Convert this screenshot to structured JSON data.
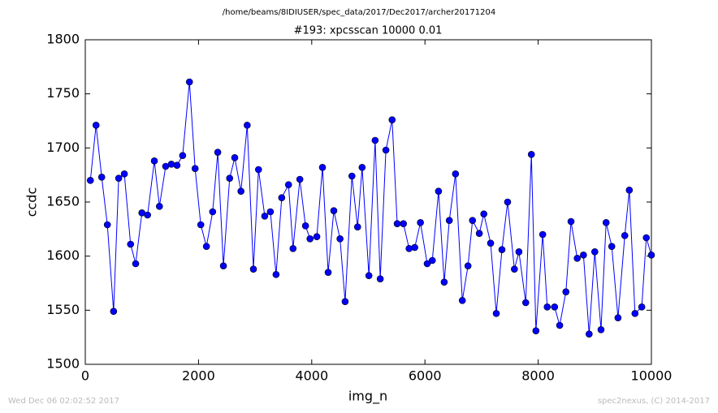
{
  "chart_data": {
    "type": "line",
    "suptitle": "/home/beams/8IDIUSER/spec_data/2017/Dec2017/archer20171204",
    "title": "#193: xpcsscan 10000 0.01",
    "x_label": "img_n",
    "y_label": "ccdc",
    "footer_left": "Wed Dec 06 02:02:52 2017",
    "footer_right": "spec2nexus, (C) 2014-2017",
    "xlim": [
      0,
      10000
    ],
    "xticks": [
      0,
      2000,
      4000,
      6000,
      8000,
      10000
    ],
    "ylim": [
      1500,
      1800
    ],
    "yticks": [
      1500,
      1550,
      1600,
      1650,
      1700,
      1750,
      1800
    ],
    "grid": false,
    "x": [
      90,
      190,
      290,
      390,
      500,
      590,
      690,
      800,
      890,
      1000,
      1100,
      1220,
      1310,
      1420,
      1520,
      1620,
      1720,
      1840,
      1940,
      2040,
      2140,
      2250,
      2340,
      2440,
      2550,
      2640,
      2750,
      2860,
      2970,
      3060,
      3170,
      3270,
      3370,
      3470,
      3590,
      3670,
      3790,
      3890,
      3970,
      4090,
      4190,
      4290,
      4390,
      4500,
      4590,
      4710,
      4810,
      4890,
      5010,
      5120,
      5210,
      5310,
      5420,
      5510,
      5620,
      5720,
      5820,
      5920,
      6040,
      6130,
      6240,
      6340,
      6430,
      6540,
      6660,
      6760,
      6840,
      6960,
      7040,
      7160,
      7260,
      7360,
      7460,
      7580,
      7660,
      7780,
      7880,
      7960,
      8080,
      8160,
      8290,
      8380,
      8490,
      8580,
      8690,
      8800,
      8900,
      9000,
      9110,
      9200,
      9300,
      9410,
      9530,
      9610,
      9710,
      9830,
      9910,
      10000
    ],
    "series": [
      {
        "name": "ccdc",
        "color": "#0000ff",
        "values": [
          1670,
          1721,
          1673,
          1629,
          1549,
          1672,
          1676,
          1611,
          1593,
          1640,
          1638,
          1688,
          1646,
          1683,
          1685,
          1684,
          1693,
          1761,
          1681,
          1629,
          1609,
          1641,
          1696,
          1591,
          1672,
          1691,
          1660,
          1721,
          1588,
          1680,
          1637,
          1641,
          1583,
          1654,
          1666,
          1607,
          1671,
          1628,
          1616,
          1618,
          1682,
          1585,
          1642,
          1616,
          1558,
          1674,
          1627,
          1682,
          1582,
          1707,
          1579,
          1698,
          1726,
          1630,
          1630,
          1607,
          1608,
          1631,
          1593,
          1596,
          1660,
          1576,
          1633,
          1676,
          1559,
          1591,
          1633,
          1621,
          1639,
          1612,
          1547,
          1606,
          1650,
          1588,
          1604,
          1557,
          1694,
          1531,
          1620,
          1553,
          1553,
          1536,
          1567,
          1632,
          1598,
          1601,
          1528,
          1604,
          1532,
          1631,
          1609,
          1543,
          1619,
          1661,
          1547,
          1553,
          1617,
          1601
        ]
      }
    ]
  }
}
